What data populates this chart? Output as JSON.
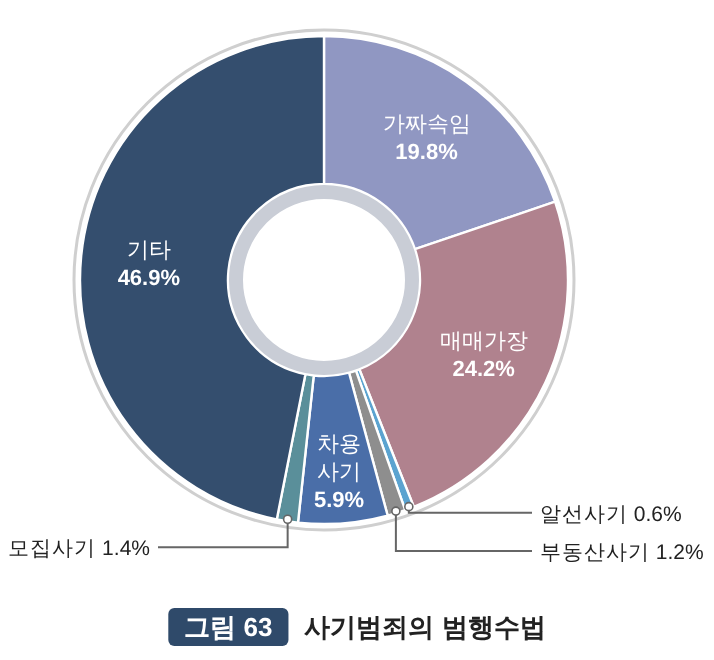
{
  "chart_data": {
    "type": "donut",
    "subtitle": "그림 63",
    "title": "사기범죄의 범행수법",
    "categories": [
      "가짜속임",
      "매매가장",
      "알선사기",
      "부동산사기",
      "차용사기",
      "모집사기",
      "기타"
    ],
    "values": [
      19.8,
      24.2,
      0.6,
      1.2,
      5.9,
      1.4,
      46.9
    ],
    "value_labels": [
      "19.8%",
      "24.2%",
      "0.6%",
      "1.2%",
      "5.9%",
      "1.4%",
      "46.9%"
    ],
    "colors": [
      "#9097c2",
      "#b0828e",
      "#5ba3d0",
      "#8e8e8e",
      "#4a6ea8",
      "#5a8f9a",
      "#344e6e"
    ]
  }
}
